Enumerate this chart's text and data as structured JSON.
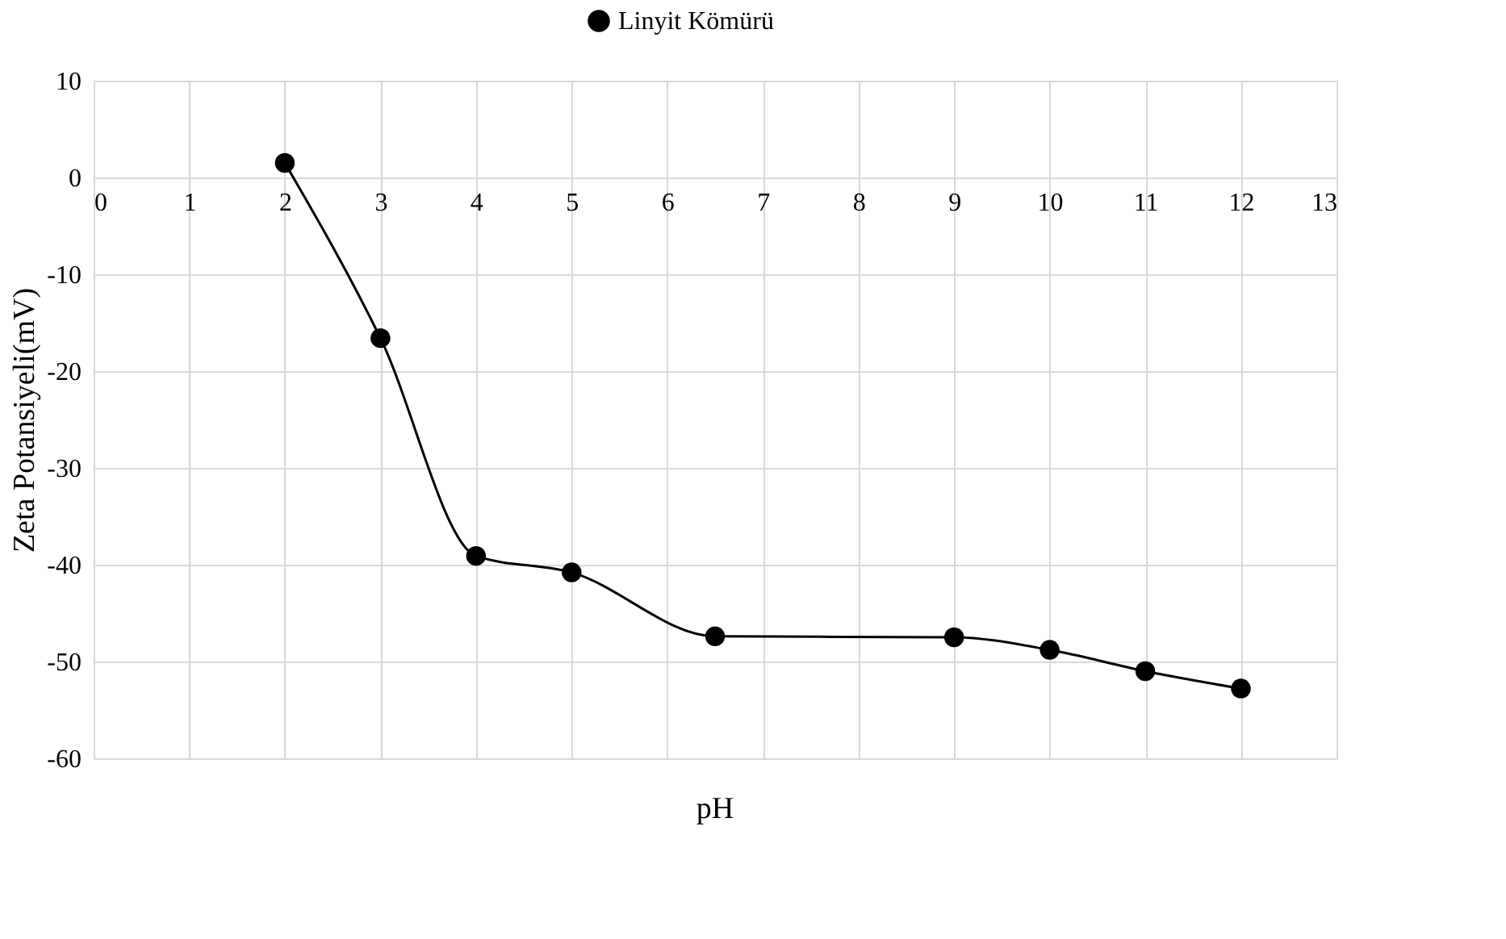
{
  "chart_data": {
    "type": "line",
    "xlabel": "pH",
    "ylabel": "Zeta Potansiyeli(mV)",
    "x": [
      2,
      3,
      4,
      5,
      6.5,
      9,
      10,
      11,
      12
    ],
    "series": [
      {
        "name": "Linyit Kömürü",
        "color": "#000000",
        "values": [
          1.5,
          -16.6,
          -39.1,
          -40.8,
          -47.4,
          -47.5,
          -48.8,
          -51.0,
          -52.8
        ]
      }
    ],
    "xlim": [
      0,
      13
    ],
    "xticks": [
      0,
      1,
      2,
      3,
      4,
      5,
      6,
      7,
      8,
      9,
      10,
      11,
      12,
      13
    ],
    "ylim": [
      -60,
      10
    ],
    "yticks": [
      -60,
      -50,
      -40,
      -30,
      -20,
      -10,
      0,
      10
    ],
    "grid": true,
    "legend": "top",
    "marker": "circle",
    "line_style": "solid"
  }
}
